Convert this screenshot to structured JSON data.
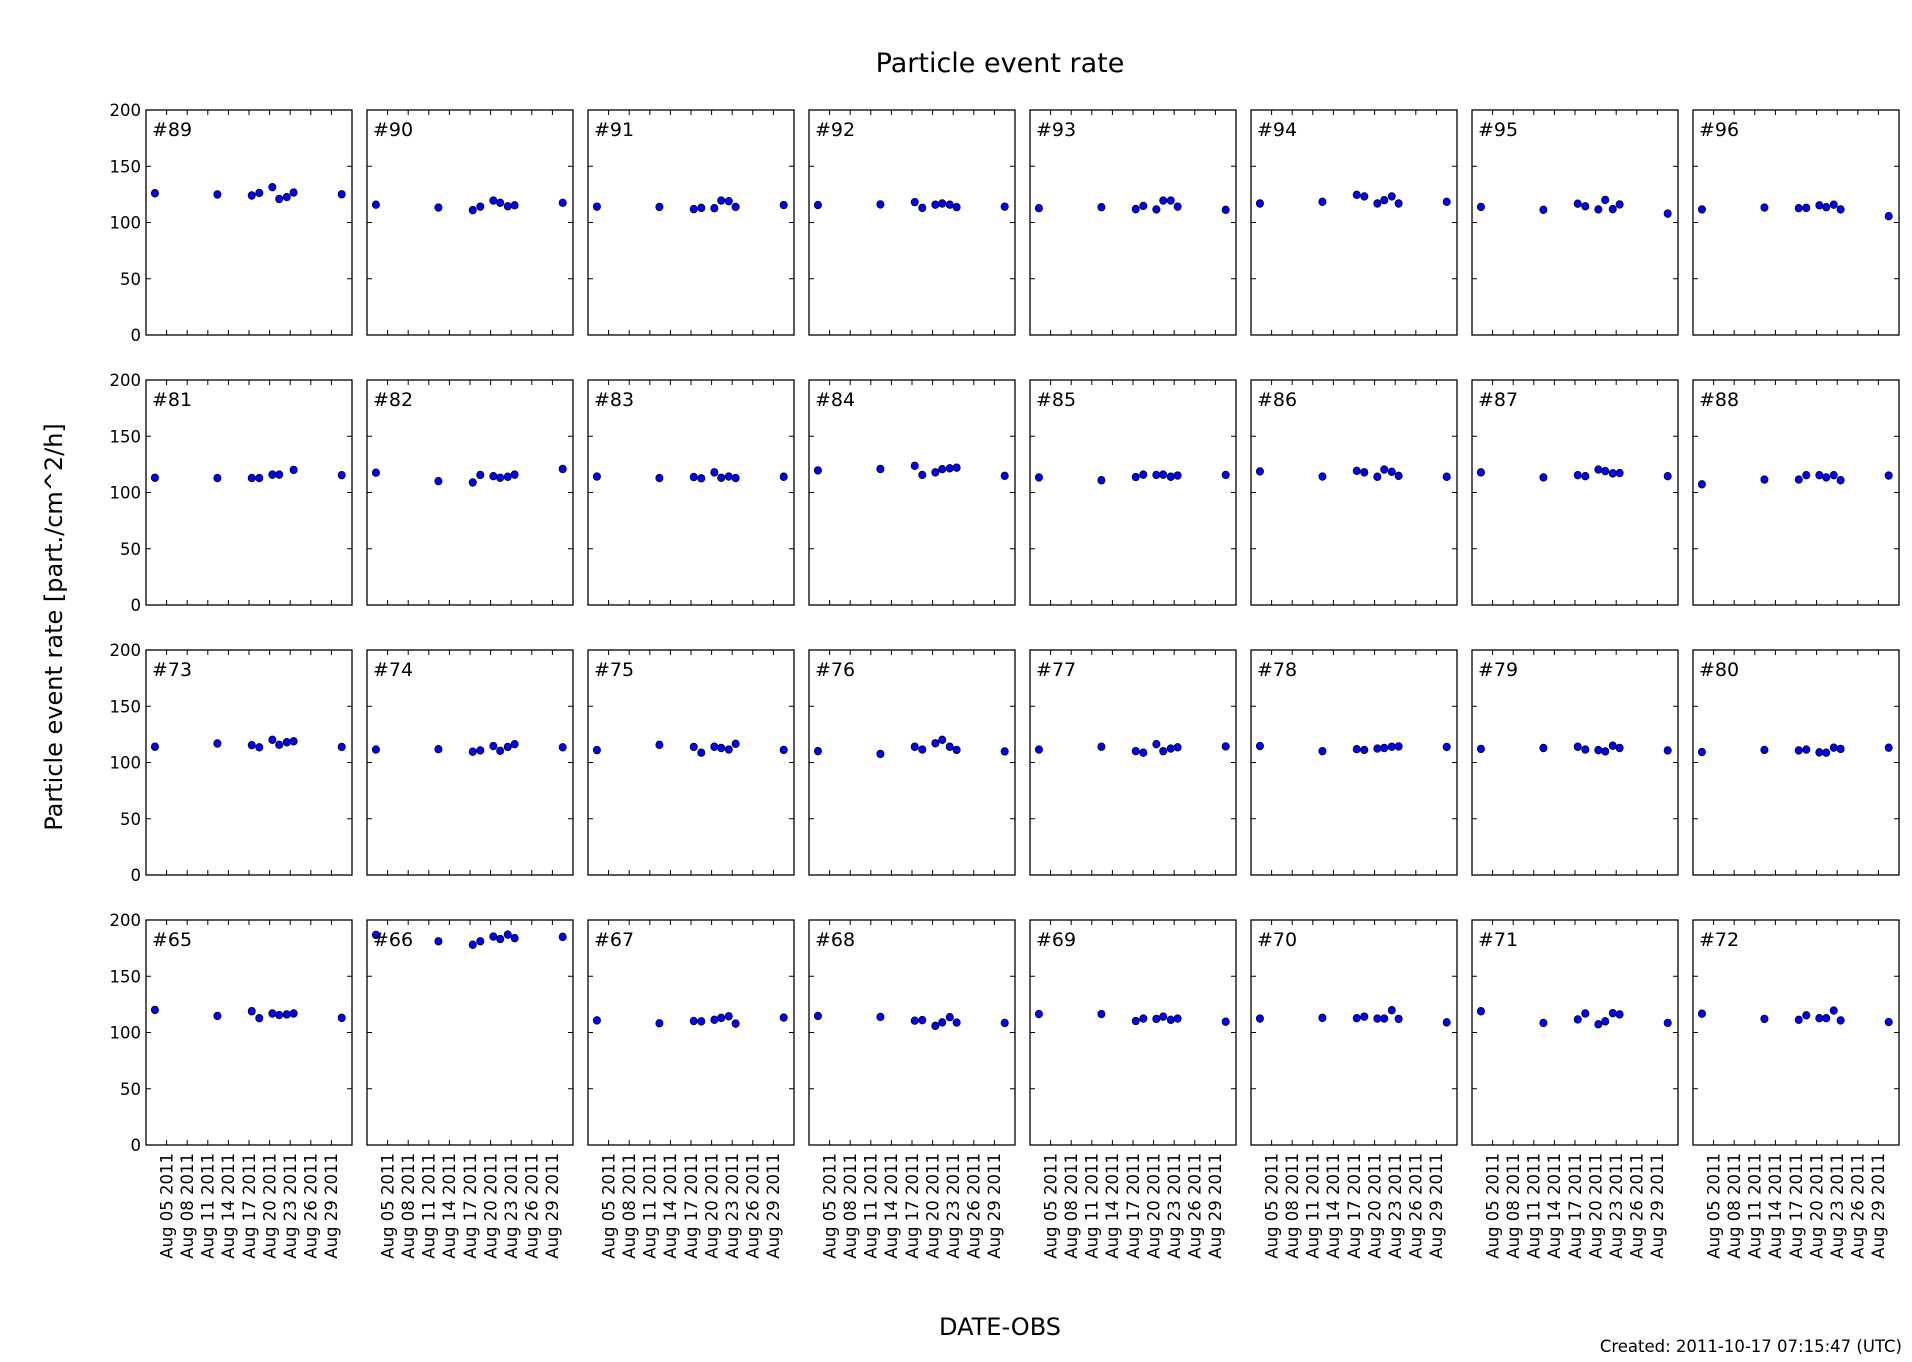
{
  "chart_data": {
    "type": "scatter",
    "title": "Particle event rate",
    "xlabel": "DATE-OBS",
    "ylabel": "Particle event rate [part./cm^2/h]",
    "footer": "Created: 2011-10-17 07:15:47 (UTC)",
    "ylim": [
      0,
      200
    ],
    "yticks": [
      "0",
      "50",
      "100",
      "150",
      "200"
    ],
    "xlim_day_of_aug_2011": [
      2,
      32
    ],
    "xtick_days": [
      2,
      5,
      8,
      11,
      14,
      17,
      20,
      23,
      26,
      29,
      32
    ],
    "xtick_labels": [
      "",
      "Aug 05 2011",
      "Aug 08 2011",
      "Aug 11 2011",
      "Aug 14 2011",
      "Aug 17 2011",
      "Aug 20 2011",
      "Aug 23 2011",
      "Aug 26 2011",
      "Aug 29 2011",
      ""
    ],
    "x_day_of_aug_2011": [
      3.3,
      12.4,
      17.4,
      18.5,
      20.4,
      21.4,
      22.5,
      23.5,
      30.5
    ],
    "grid": false,
    "layout": "4 rows x 8 columns",
    "marker_color": "#0000ff",
    "panels": [
      {
        "label": "#89",
        "values": [
          126.0,
          124.9,
          124.0,
          126.3,
          131.4,
          120.9,
          122.6,
          126.6,
          125.1
        ]
      },
      {
        "label": "#90",
        "values": [
          115.8,
          113.3,
          111.0,
          114.1,
          119.5,
          117.5,
          114.4,
          115.3,
          117.5
        ]
      },
      {
        "label": "#91",
        "values": [
          114.1,
          113.8,
          111.9,
          113.0,
          112.7,
          119.5,
          118.9,
          113.8,
          115.5
        ]
      },
      {
        "label": "#92",
        "values": [
          115.5,
          116.1,
          118.1,
          113.0,
          115.8,
          116.9,
          115.8,
          113.6,
          114.1
        ]
      },
      {
        "label": "#93",
        "values": [
          112.7,
          113.6,
          111.9,
          114.7,
          111.6,
          119.5,
          119.5,
          114.1,
          111.3
        ]
      },
      {
        "label": "#94",
        "values": [
          116.9,
          118.4,
          124.6,
          123.2,
          116.9,
          119.8,
          123.2,
          116.9,
          118.4
        ]
      },
      {
        "label": "#95",
        "values": [
          113.8,
          111.3,
          116.7,
          114.4,
          111.6,
          120.1,
          111.9,
          116.1,
          107.9
        ]
      },
      {
        "label": "#96",
        "values": [
          111.6,
          113.3,
          112.7,
          113.0,
          115.3,
          113.6,
          115.8,
          111.6,
          105.6
        ]
      },
      {
        "label": "#81",
        "values": [
          113.1,
          112.8,
          112.8,
          112.8,
          115.9,
          115.9,
          null,
          120.1,
          115.4
        ]
      },
      {
        "label": "#82",
        "values": [
          117.6,
          110.1,
          108.9,
          115.6,
          114.5,
          113.1,
          114.0,
          115.9,
          120.9
        ]
      },
      {
        "label": "#83",
        "values": [
          114.2,
          112.8,
          113.7,
          112.6,
          117.9,
          113.1,
          114.2,
          112.8,
          114.0
        ]
      },
      {
        "label": "#84",
        "values": [
          119.6,
          120.9,
          123.7,
          115.6,
          117.9,
          120.7,
          121.5,
          122.1,
          114.8
        ]
      },
      {
        "label": "#85",
        "values": [
          113.4,
          110.9,
          113.7,
          115.9,
          115.6,
          115.9,
          114.0,
          115.1,
          115.6
        ]
      },
      {
        "label": "#86",
        "values": [
          118.7,
          114.2,
          119.3,
          117.9,
          114.0,
          120.4,
          118.4,
          114.8,
          114.0
        ]
      },
      {
        "label": "#87",
        "values": [
          117.9,
          113.4,
          115.4,
          114.5,
          120.4,
          119.0,
          117.0,
          117.3,
          114.5
        ]
      },
      {
        "label": "#88",
        "values": [
          107.3,
          111.5,
          111.5,
          115.4,
          115.4,
          113.4,
          115.4,
          110.9,
          115.1
        ]
      },
      {
        "label": "#73",
        "values": [
          114.0,
          116.9,
          115.4,
          113.5,
          120.2,
          115.7,
          118.0,
          118.8,
          113.8
        ]
      },
      {
        "label": "#74",
        "values": [
          111.5,
          111.8,
          109.6,
          110.7,
          114.6,
          110.4,
          113.8,
          116.3,
          113.5
        ]
      },
      {
        "label": "#75",
        "values": [
          111.0,
          115.7,
          113.8,
          108.7,
          114.0,
          112.9,
          111.5,
          116.6,
          111.2
        ]
      },
      {
        "label": "#76",
        "values": [
          110.1,
          107.6,
          114.0,
          111.5,
          117.1,
          120.2,
          114.0,
          111.2,
          109.8
        ]
      },
      {
        "label": "#77",
        "values": [
          111.5,
          114.0,
          110.1,
          108.7,
          116.3,
          110.1,
          112.4,
          113.5,
          114.3
        ]
      },
      {
        "label": "#78",
        "values": [
          114.6,
          110.1,
          111.8,
          111.2,
          112.4,
          112.9,
          114.0,
          114.3,
          113.8
        ]
      },
      {
        "label": "#79",
        "values": [
          112.1,
          112.9,
          114.0,
          111.5,
          111.0,
          109.8,
          114.9,
          112.9,
          110.7
        ]
      },
      {
        "label": "#80",
        "values": [
          109.3,
          111.2,
          110.7,
          111.5,
          109.0,
          108.7,
          113.2,
          112.1,
          113.2
        ]
      },
      {
        "label": "#65",
        "values": [
          120.1,
          114.7,
          118.9,
          112.7,
          116.9,
          115.5,
          116.1,
          116.9,
          113.0
        ]
      },
      {
        "label": "#66",
        "values": [
          186.7,
          181.1,
          178.0,
          181.1,
          185.3,
          183.1,
          187.0,
          183.9,
          185.0
        ]
      },
      {
        "label": "#67",
        "values": [
          110.7,
          108.2,
          110.2,
          109.9,
          111.3,
          113.0,
          114.4,
          107.9,
          113.3
        ]
      },
      {
        "label": "#68",
        "values": [
          114.7,
          113.8,
          110.5,
          111.0,
          105.9,
          109.0,
          113.6,
          108.8,
          108.5
        ]
      },
      {
        "label": "#69",
        "values": [
          116.4,
          116.4,
          110.2,
          112.4,
          112.1,
          114.1,
          111.3,
          112.4,
          109.6
        ]
      },
      {
        "label": "#70",
        "values": [
          112.4,
          113.0,
          112.7,
          114.1,
          112.4,
          112.4,
          119.8,
          112.1,
          109.0
        ]
      },
      {
        "label": "#71",
        "values": [
          118.9,
          108.5,
          111.6,
          116.9,
          107.3,
          109.9,
          117.2,
          116.1,
          108.5
        ]
      },
      {
        "label": "#72",
        "values": [
          116.7,
          112.1,
          111.3,
          115.3,
          112.7,
          112.7,
          119.5,
          110.7,
          109.3
        ]
      }
    ]
  }
}
